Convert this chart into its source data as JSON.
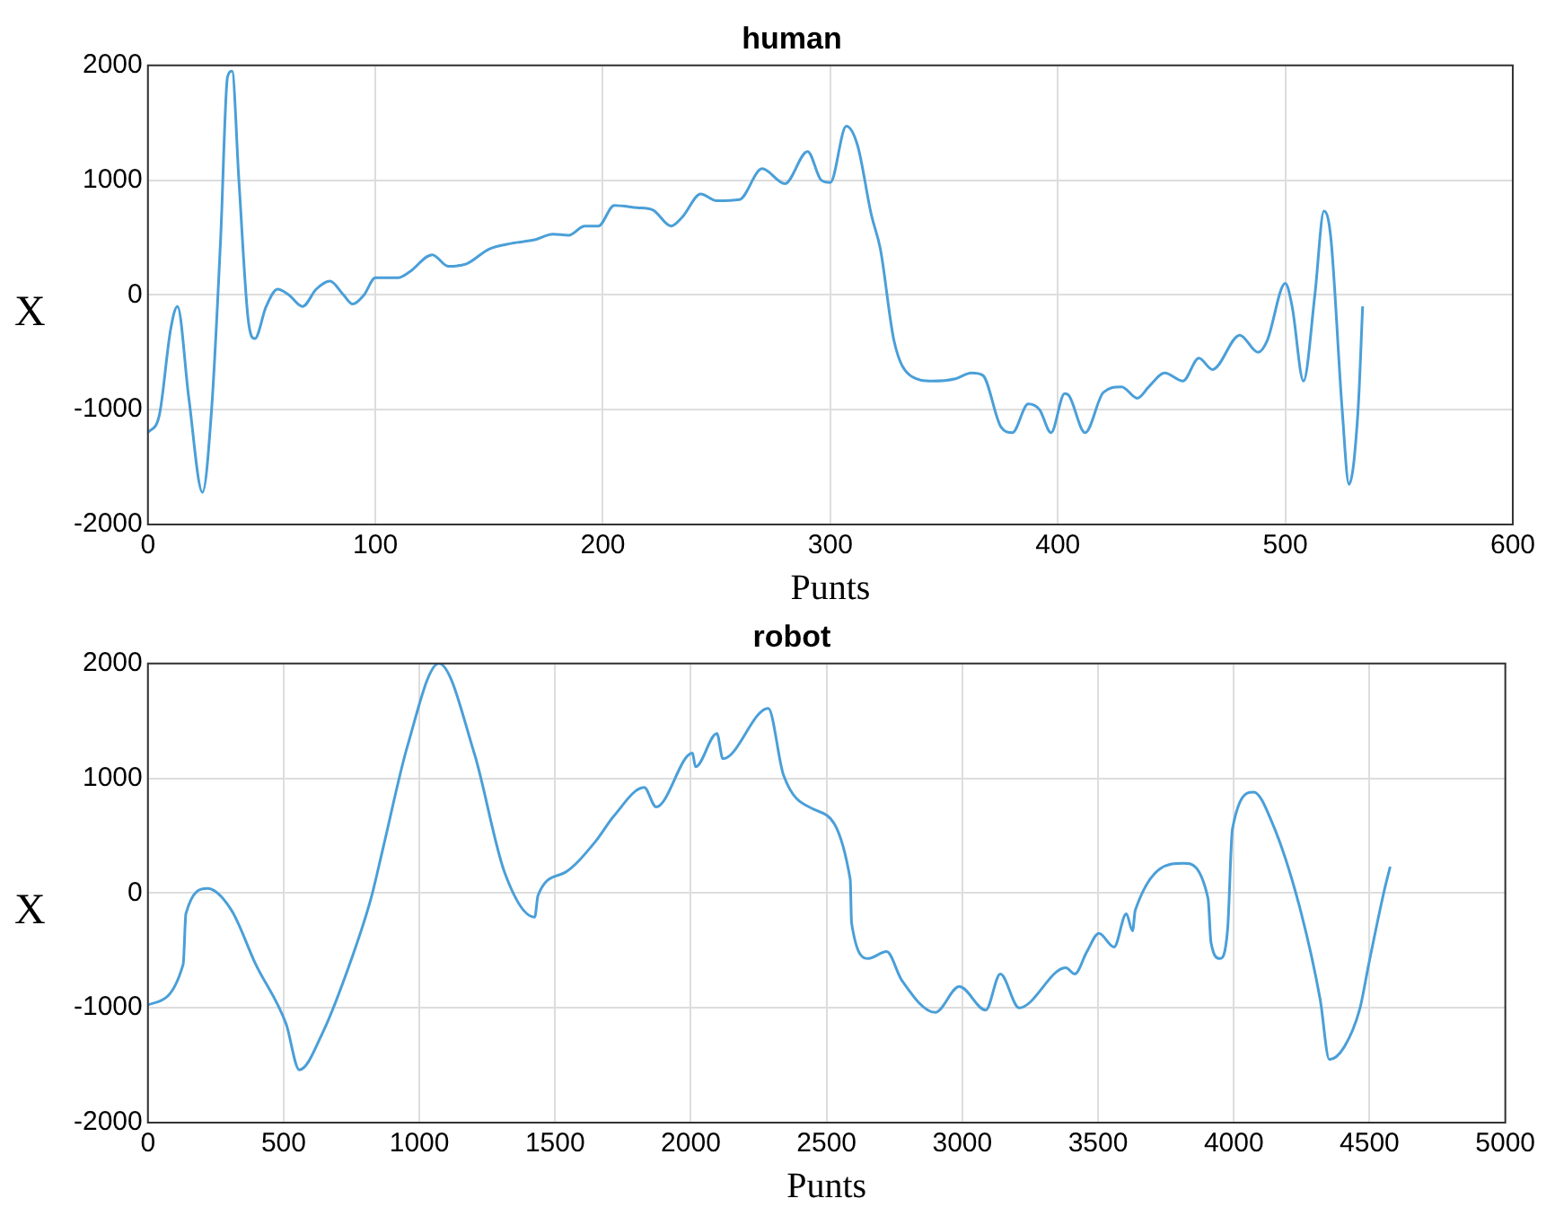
{
  "chart_data": [
    {
      "type": "line",
      "title": "human",
      "xlabel": "Punts",
      "ylabel": "X",
      "color": "#4a9fd8",
      "marker": "none",
      "grid": true,
      "xlim": [
        0,
        600
      ],
      "xticks": [
        0,
        100,
        200,
        300,
        400,
        500,
        600
      ],
      "ylim": [
        -2000,
        2000
      ],
      "yticks": [
        -2000,
        -1000,
        0,
        1000,
        2000
      ],
      "x": [
        0,
        5,
        10,
        13,
        18,
        24,
        28,
        32,
        35,
        37,
        40,
        44,
        47,
        52,
        57,
        62,
        68,
        74,
        80,
        86,
        90,
        95,
        100,
        110,
        115,
        125,
        132,
        140,
        150,
        160,
        170,
        178,
        185,
        192,
        198,
        205,
        215,
        222,
        230,
        235,
        243,
        250,
        260,
        270,
        280,
        290,
        296,
        300,
        307,
        312,
        318,
        322,
        328,
        335,
        345,
        355,
        362,
        367,
        375,
        380,
        387,
        392,
        397,
        403,
        405,
        412,
        420,
        428,
        435,
        440,
        447,
        455,
        462,
        468,
        480,
        488,
        492,
        500,
        503,
        508,
        513,
        517,
        520,
        525,
        528,
        532,
        534
      ],
      "values": [
        -1200,
        -1050,
        -300,
        -100,
        -900,
        -1720,
        -1000,
        500,
        1900,
        1950,
        1000,
        -200,
        -380,
        -100,
        50,
        0,
        -100,
        50,
        120,
        0,
        -80,
        0,
        150,
        150,
        200,
        350,
        250,
        270,
        400,
        450,
        480,
        530,
        520,
        600,
        600,
        780,
        760,
        740,
        600,
        680,
        880,
        820,
        830,
        1100,
        970,
        1250,
        1000,
        980,
        1470,
        1300,
        700,
        400,
        -400,
        -700,
        -750,
        -730,
        -680,
        -700,
        -1150,
        -1200,
        -950,
        -1000,
        -1200,
        -860,
        -880,
        -1200,
        -850,
        -800,
        -900,
        -800,
        -680,
        -750,
        -550,
        -650,
        -350,
        -500,
        -400,
        100,
        -100,
        -750,
        0,
        730,
        500,
        -1000,
        -1650,
        -1000,
        -100
      ]
    },
    {
      "type": "line",
      "title": "robot",
      "xlabel": "Punts",
      "ylabel": "X",
      "color": "#4a9fd8",
      "marker": "none",
      "grid": true,
      "xlim": [
        0,
        5000
      ],
      "xticks": [
        0,
        500,
        1000,
        1500,
        2000,
        2500,
        3000,
        3500,
        4000,
        4500,
        5000
      ],
      "ylim": [
        -2000,
        2000
      ],
      "yticks": [
        -2000,
        -1000,
        0,
        1000,
        2000
      ],
      "x": [
        0,
        130,
        140,
        219,
        308,
        397,
        509,
        558,
        643,
        755,
        822,
        867,
        956,
        1072,
        1202,
        1314,
        1425,
        1437,
        1537,
        1649,
        1716,
        1828,
        1872,
        2006,
        2017,
        2096,
        2118,
        2285,
        2341,
        2453,
        2587,
        2592,
        2654,
        2721,
        2777,
        2900,
        2989,
        3086,
        3140,
        3209,
        3381,
        3414,
        3459,
        3503,
        3559,
        3604,
        3627,
        3637,
        3816,
        3905,
        3916,
        3949,
        3977,
        3995,
        4073,
        4140,
        4240,
        4318,
        4352,
        4407,
        4464,
        4497,
        4553,
        4576
      ],
      "values": [
        -975,
        -620,
        -180,
        40,
        -150,
        -620,
        -1140,
        -1540,
        -1220,
        -540,
        -45,
        400,
        1280,
        2000,
        1220,
        180,
        -210,
        -20,
        180,
        450,
        670,
        920,
        750,
        1220,
        1100,
        1390,
        1170,
        1610,
        1030,
        730,
        120,
        -260,
        -570,
        -510,
        -760,
        -1040,
        -815,
        -1020,
        -705,
        -1000,
        -650,
        -705,
        -510,
        -350,
        -470,
        -180,
        -330,
        -150,
        260,
        -45,
        -430,
        -570,
        -320,
        560,
        880,
        620,
        -100,
        -925,
        -1450,
        -1340,
        -1010,
        -620,
        10,
        230
      ]
    }
  ]
}
